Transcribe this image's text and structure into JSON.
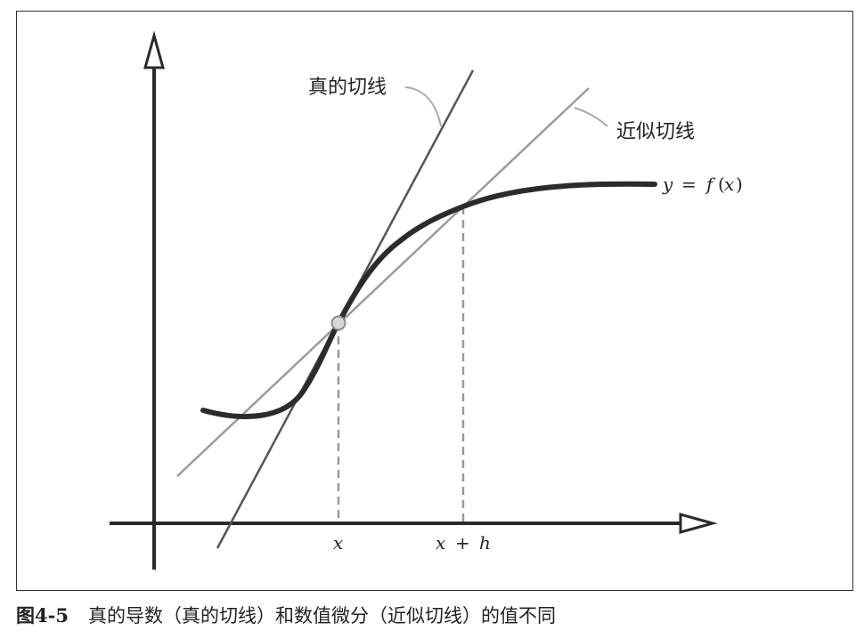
{
  "figure": {
    "labels": {
      "true_tangent": "真的切线",
      "approx_tangent": "近似切线",
      "curve_y": "y",
      "curve_eq": "=",
      "curve_f": "f",
      "curve_paren_open": "(",
      "curve_x": "x",
      "curve_paren_close": ")",
      "tick_x": "x",
      "tick_xh_x": "x",
      "tick_xh_plus": "+",
      "tick_xh_h": "h"
    }
  },
  "caption": {
    "number": "图4-5",
    "text": "真的导数（真的切线）和数值微分（近似切线）的值不同"
  }
}
